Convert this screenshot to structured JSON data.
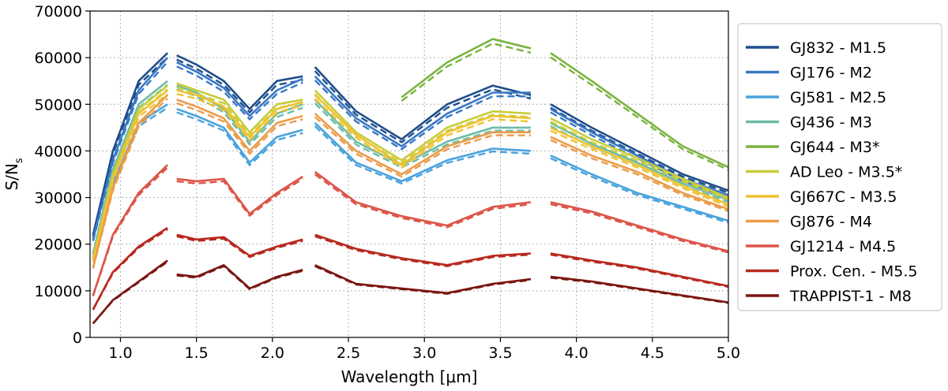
{
  "chart_data": {
    "type": "line",
    "title": "",
    "xlabel": "Wavelength [μm]",
    "ylabel": "S/N",
    "ylabel_sub": "s",
    "xlim": [
      0.8,
      5.0
    ],
    "ylim": [
      0,
      70000
    ],
    "xticks": [
      1.0,
      1.5,
      2.0,
      2.5,
      3.0,
      3.5,
      4.0,
      4.5,
      5.0
    ],
    "xtick_labels": [
      "1.0",
      "1.5",
      "2.0",
      "2.5",
      "3.0",
      "3.5",
      "4.0",
      "4.5",
      "5.0"
    ],
    "yticks": [
      0,
      10000,
      20000,
      30000,
      40000,
      50000,
      60000,
      70000
    ],
    "ytick_labels": [
      "0",
      "10000",
      "20000",
      "30000",
      "40000",
      "50000",
      "60000",
      "70000"
    ],
    "grid": true,
    "legend_position": "right",
    "series": [
      {
        "name": "GJ832 - M1.5",
        "color": "#1f4e8c",
        "s1": [
          22000,
          40000,
          55000,
          61000
        ],
        "s2": [
          60500,
          58500,
          55000,
          49000,
          55000,
          56000
        ],
        "s3": [
          58000,
          48500,
          42500,
          50000,
          54000,
          52000
        ],
        "s4": [
          50000,
          45000,
          40000,
          35000,
          31500
        ]
      },
      {
        "name": "GJ176 - M2",
        "color": "#3a78c4",
        "s1": [
          21000,
          38000,
          53000,
          60000
        ],
        "s2": [
          59000,
          57000,
          53500,
          47500,
          53000,
          55500
        ],
        "s3": [
          56000,
          47000,
          41000,
          48000,
          52500,
          52500
        ],
        "s4": [
          49000,
          44000,
          39000,
          34000,
          30500
        ]
      },
      {
        "name": "GJ581 - M2.5",
        "color": "#4aa3dc",
        "s1": [
          17000,
          33000,
          46000,
          50000
        ],
        "s2": [
          49000,
          47500,
          45000,
          37500,
          43000,
          44500
        ],
        "s3": [
          46000,
          37500,
          33500,
          38000,
          40500,
          40000
        ],
        "s4": [
          39000,
          35000,
          31000,
          28000,
          25000
        ]
      },
      {
        "name": "GJ436 - M3",
        "color": "#6dbba7",
        "s1": [
          18000,
          36000,
          50000,
          55000
        ],
        "s2": [
          54000,
          52500,
          49000,
          42000,
          48000,
          50000
        ],
        "s3": [
          51000,
          42000,
          37000,
          42000,
          45000,
          45000
        ],
        "s4": [
          46000,
          41500,
          37500,
          33000,
          29500
        ]
      },
      {
        "name": "GJ644 - M3*",
        "color": "#7ab33f",
        "s1": [
          null,
          null,
          null,
          null
        ],
        "s2": [
          null,
          null,
          null,
          null,
          null,
          null
        ],
        "s3": [
          null,
          null,
          51500,
          59000,
          64000,
          62000
        ],
        "s4": [
          61000,
          55000,
          48000,
          41000,
          36500
        ]
      },
      {
        "name": "AD Leo - M3.5*",
        "color": "#c8cc3a",
        "s1": [
          17000,
          35000,
          49000,
          54000
        ],
        "s2": [
          54500,
          53000,
          51000,
          44000,
          50000,
          51000
        ],
        "s3": [
          53000,
          44000,
          38000,
          45000,
          48500,
          48000
        ],
        "s4": [
          47000,
          42500,
          38500,
          34000,
          30000
        ]
      },
      {
        "name": "GJ667C - M3.5",
        "color": "#f0c232",
        "s1": [
          16500,
          34000,
          48000,
          53000
        ],
        "s2": [
          53000,
          52000,
          49500,
          43000,
          49000,
          50500
        ],
        "s3": [
          52000,
          43500,
          37000,
          44000,
          47500,
          47000
        ],
        "s4": [
          45000,
          41000,
          37000,
          32500,
          28500
        ]
      },
      {
        "name": "GJ876 - M4",
        "color": "#eb9c4a",
        "s1": [
          15000,
          32000,
          46000,
          52000
        ],
        "s2": [
          51000,
          49500,
          47000,
          40000,
          46000,
          47500
        ],
        "s3": [
          48000,
          40000,
          35000,
          41000,
          44000,
          44000
        ],
        "s4": [
          43000,
          39000,
          35500,
          31000,
          27500
        ]
      },
      {
        "name": "GJ1214 - M4.5",
        "color": "#dd5548",
        "s1": [
          9000,
          22000,
          31000,
          37000
        ],
        "s2": [
          34000,
          33500,
          34000,
          26500,
          31000,
          34500
        ],
        "s3": [
          35500,
          29000,
          26000,
          24000,
          28000,
          29000
        ],
        "s4": [
          29000,
          27000,
          24000,
          21000,
          18500
        ]
      },
      {
        "name": "Prox. Cen. - M5.5",
        "color": "#b8291f",
        "s1": [
          6000,
          14000,
          19500,
          23500
        ],
        "s2": [
          22000,
          21000,
          21500,
          17500,
          19500,
          21000
        ],
        "s3": [
          22000,
          19000,
          17000,
          15500,
          17500,
          18000
        ],
        "s4": [
          18000,
          16500,
          15000,
          13000,
          11000
        ]
      },
      {
        "name": "TRAPPIST-1 - M8",
        "color": "#7a1510",
        "s1": [
          3000,
          8000,
          12000,
          16500
        ],
        "s2": [
          13500,
          13000,
          15500,
          10500,
          13000,
          14500
        ],
        "s3": [
          15500,
          11500,
          10500,
          9500,
          11500,
          12500
        ],
        "s4": [
          13000,
          12000,
          10500,
          9000,
          7500
        ]
      }
    ],
    "segment_x": {
      "s1": [
        0.82,
        0.95,
        1.12,
        1.31
      ],
      "s2": [
        1.37,
        1.5,
        1.68,
        1.85,
        2.03,
        2.2
      ],
      "s3": [
        2.28,
        2.55,
        2.85,
        3.15,
        3.45,
        3.7
      ],
      "s4": [
        3.83,
        4.1,
        4.4,
        4.7,
        5.0
      ]
    }
  }
}
